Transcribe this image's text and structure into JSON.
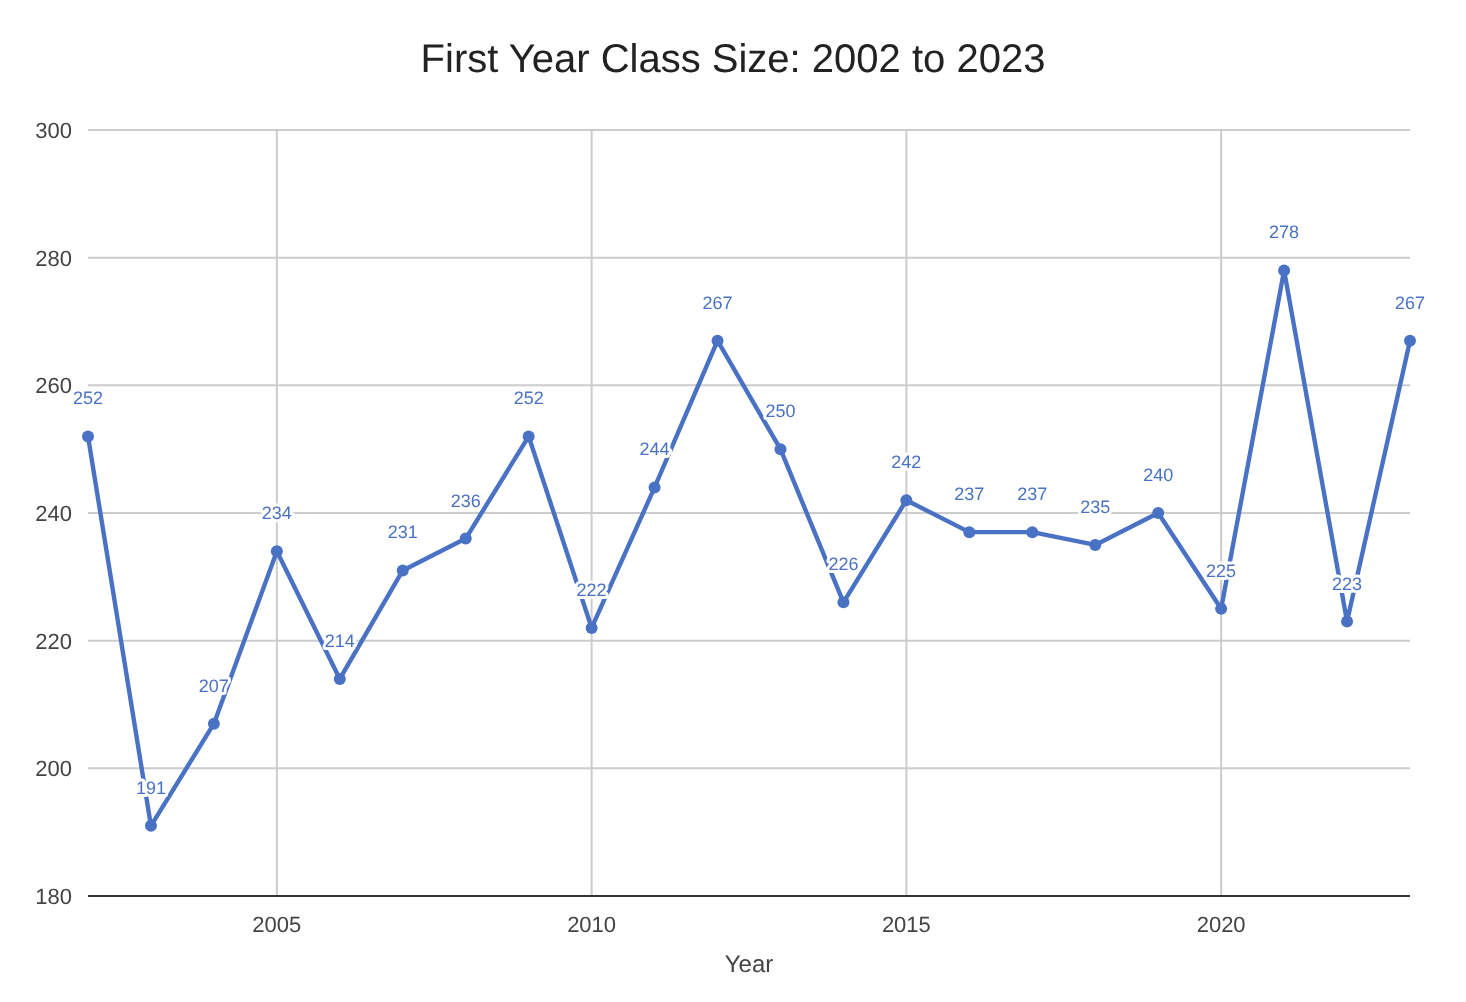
{
  "chart_data": {
    "type": "line",
    "title": "First Year Class Size: 2002 to 2023",
    "xlabel": "Year",
    "x": [
      2002,
      2003,
      2004,
      2005,
      2006,
      2007,
      2008,
      2009,
      2010,
      2011,
      2012,
      2013,
      2014,
      2015,
      2016,
      2017,
      2018,
      2019,
      2020,
      2021,
      2022,
      2023
    ],
    "series": [
      {
        "color": "#4a72c4",
        "values": [
          252,
          191,
          207,
          234,
          214,
          231,
          236,
          252,
          222,
          244,
          267,
          250,
          226,
          242,
          237,
          237,
          235,
          240,
          225,
          278,
          223,
          267
        ]
      }
    ],
    "xlim": [
      2002,
      2023
    ],
    "xticks": [
      2005,
      2010,
      2015,
      2020
    ],
    "ylim": [
      180,
      300
    ],
    "yticks": [
      180,
      200,
      220,
      240,
      260,
      280,
      300
    ],
    "grid": true,
    "marker": "circle",
    "line_style": "solid",
    "data_labels": true
  }
}
